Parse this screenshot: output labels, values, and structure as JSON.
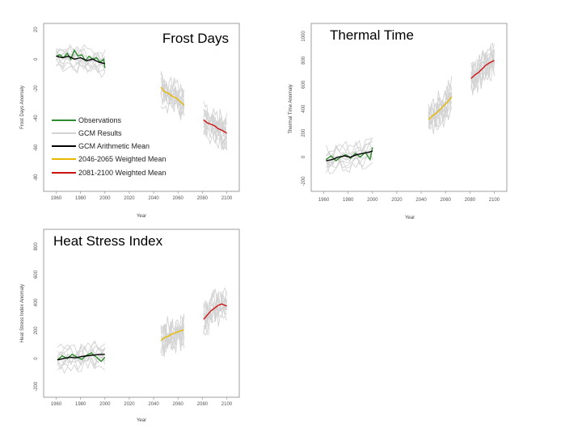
{
  "colors": {
    "observations": "#2e8b2e",
    "gcm": "#d3d3d3",
    "arith_mean": "#000000",
    "w2046": "#e8b800",
    "w2081": "#cc1111"
  },
  "legend": {
    "entries": [
      {
        "label": "Observations",
        "color": "#2e8b2e"
      },
      {
        "label": "GCM Results",
        "color": "#d3d3d3"
      },
      {
        "label": "GCM Arithmetic Mean",
        "color": "#000000"
      },
      {
        "label": "2046-2065 Weighted Mean",
        "color": "#e8b800"
      },
      {
        "label": "2081-2100 Weighted Mean",
        "color": "#cc1111"
      }
    ]
  },
  "chart_data": [
    {
      "id": "frost",
      "type": "line",
      "title": "Frost Days",
      "xlabel": "Year",
      "ylabel": "Frost Days Anomaly",
      "xlim": [
        1955,
        2105
      ],
      "ylim": [
        -85,
        22
      ],
      "xticks": [
        1960,
        1980,
        2000,
        2020,
        2040,
        2060,
        2080,
        2100
      ],
      "yticks": [
        -80,
        -60,
        -40,
        -20,
        0,
        20
      ],
      "series": [
        {
          "name": "Observations",
          "color": "#2e8b2e",
          "x": [
            1960,
            1963,
            1966,
            1969,
            1972,
            1975,
            1978,
            1981,
            1984,
            1987,
            1990,
            1993,
            1996,
            1999,
            2000
          ],
          "y": [
            2,
            3,
            1,
            4,
            0,
            6,
            2,
            3,
            -1,
            2,
            0,
            1,
            -2,
            0,
            -6
          ]
        },
        {
          "name": "GCM Arithmetic Mean",
          "color": "#000000",
          "x": [
            1960,
            1965,
            1970,
            1975,
            1980,
            1985,
            1990,
            1995,
            2000
          ],
          "y": [
            2,
            1,
            2,
            0,
            1,
            -1,
            0,
            -2,
            -3
          ]
        },
        {
          "name": "2046-2065 Weighted Mean",
          "color": "#e8b800",
          "x": [
            2046,
            2049,
            2052,
            2055,
            2058,
            2061,
            2065
          ],
          "y": [
            -19,
            -22,
            -23,
            -25,
            -26,
            -28,
            -31
          ]
        },
        {
          "name": "2081-2100 Weighted Mean",
          "color": "#cc1111",
          "x": [
            2081,
            2084,
            2087,
            2090,
            2093,
            2096,
            2100
          ],
          "y": [
            -41,
            -43,
            -44,
            -45,
            -47,
            -48,
            -50
          ]
        }
      ]
    },
    {
      "id": "thermal",
      "type": "line",
      "title": "Thermal Time",
      "xlabel": "Year",
      "ylabel": "Thermal Time Anomaly",
      "xlim": [
        1955,
        2105
      ],
      "ylim": [
        -230,
        1080
      ],
      "xticks": [
        1960,
        1980,
        2000,
        2020,
        2040,
        2060,
        2080,
        2100
      ],
      "yticks": [
        -200,
        0,
        200,
        400,
        600,
        800,
        1000
      ],
      "series": [
        {
          "name": "Observations",
          "color": "#2e8b2e",
          "x": [
            1962,
            1966,
            1970,
            1974,
            1978,
            1982,
            1986,
            1990,
            1994,
            1998,
            2000
          ],
          "y": [
            -20,
            10,
            -30,
            0,
            20,
            -10,
            30,
            0,
            40,
            -20,
            80
          ]
        },
        {
          "name": "GCM Arithmetic Mean",
          "color": "#000000",
          "x": [
            1962,
            1967,
            1972,
            1977,
            1982,
            1987,
            1992,
            1997,
            2000
          ],
          "y": [
            -30,
            -20,
            0,
            10,
            0,
            20,
            30,
            40,
            50
          ]
        },
        {
          "name": "2046-2065 Weighted Mean",
          "color": "#e8b800",
          "x": [
            2046,
            2049,
            2052,
            2055,
            2058,
            2061,
            2065
          ],
          "y": [
            310,
            340,
            360,
            390,
            420,
            450,
            500
          ]
        },
        {
          "name": "2081-2100 Weighted Mean",
          "color": "#cc1111",
          "x": [
            2081,
            2084,
            2087,
            2090,
            2093,
            2096,
            2100
          ],
          "y": [
            650,
            680,
            700,
            730,
            760,
            780,
            800
          ]
        }
      ]
    },
    {
      "id": "heat",
      "type": "line",
      "title": "Heat Stress Index",
      "xlabel": "Year",
      "ylabel": "Heat Stress Index Anomaly",
      "xlim": [
        1955,
        2105
      ],
      "ylim": [
        -230,
        900
      ],
      "xticks": [
        1960,
        1980,
        2000,
        2020,
        2040,
        2060,
        2080,
        2100
      ],
      "yticks": [
        -200,
        0,
        200,
        400,
        600,
        800
      ],
      "series": [
        {
          "name": "Observations",
          "color": "#2e8b2e",
          "x": [
            1961,
            1965,
            1969,
            1973,
            1977,
            1981,
            1985,
            1989,
            1993,
            1997,
            2000
          ],
          "y": [
            -10,
            20,
            0,
            30,
            10,
            -5,
            25,
            40,
            10,
            -20,
            10
          ]
        },
        {
          "name": "GCM Arithmetic Mean",
          "color": "#000000",
          "x": [
            1961,
            1966,
            1971,
            1976,
            1981,
            1986,
            1991,
            1996,
            2000
          ],
          "y": [
            -10,
            0,
            10,
            5,
            15,
            20,
            25,
            30,
            30
          ]
        },
        {
          "name": "2046-2065 Weighted Mean",
          "color": "#e8b800",
          "x": [
            2046,
            2049,
            2052,
            2055,
            2058,
            2061,
            2065
          ],
          "y": [
            130,
            150,
            160,
            175,
            185,
            195,
            205
          ]
        },
        {
          "name": "2081-2100 Weighted Mean",
          "color": "#cc1111",
          "x": [
            2081,
            2084,
            2087,
            2090,
            2093,
            2096,
            2100
          ],
          "y": [
            280,
            310,
            340,
            360,
            380,
            390,
            375
          ]
        }
      ]
    }
  ]
}
